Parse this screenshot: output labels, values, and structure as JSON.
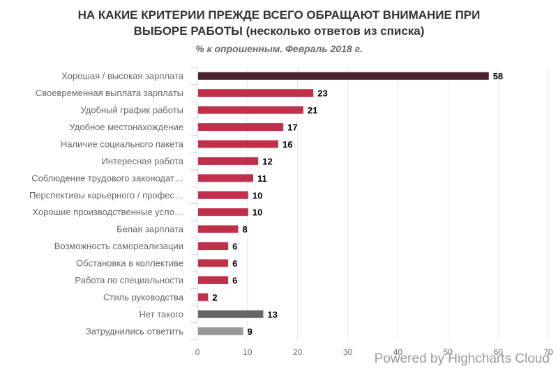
{
  "title_line1": "НА КАКИЕ КРИТЕРИИ ПРЕЖДЕ ВСЕГО ОБРАЩАЮТ ВНИМАНИЕ ПРИ",
  "title_line2": "ВЫБОРЕ РАБОТЫ (несколько ответов из списка)",
  "subtitle": "% к опрошенным. Февраль 2018 г.",
  "credits": "Powered by Highcharts Cloud",
  "chart_data": {
    "type": "bar",
    "orientation": "horizontal",
    "title": "НА КАКИЕ КРИТЕРИИ ПРЕЖДЕ ВСЕГО ОБРАЩАЮТ ВНИМАНИЕ ПРИ ВЫБОРЕ РАБОТЫ (несколько ответов из списка)",
    "subtitle": "% к опрошенным. Февраль 2018 г.",
    "categories": [
      "Хорошая / высокая зарплата",
      "Своевременная выплата зарплаты",
      "Удобный график работы",
      "Удобное местонахождение",
      "Наличие социального пакета",
      "Интересная работа",
      "Соблюдение трудового законодат…",
      "Перспективы карьерного / профес…",
      "Хорошие производственные усло…",
      "Белая зарплата",
      "Возможность самореализации",
      "Обстановка в коллективе",
      "Работа по специальности",
      "Стиль руководства",
      "Нет такого",
      "Затруднились ответить"
    ],
    "values": [
      58,
      23,
      21,
      17,
      16,
      12,
      11,
      10,
      10,
      8,
      6,
      6,
      6,
      2,
      13,
      9
    ],
    "colors": [
      "#4a2230",
      "#c0304a",
      "#c0304a",
      "#c0304a",
      "#c0304a",
      "#c0304a",
      "#c0304a",
      "#c0304a",
      "#c0304a",
      "#c0304a",
      "#c0304a",
      "#c0304a",
      "#c0304a",
      "#c0304a",
      "#666666",
      "#999999"
    ],
    "xlim": [
      0,
      70
    ],
    "ticks": [
      0,
      10,
      20,
      30,
      40,
      50,
      60,
      70
    ],
    "grid": true,
    "xlabel": "",
    "ylabel": ""
  }
}
